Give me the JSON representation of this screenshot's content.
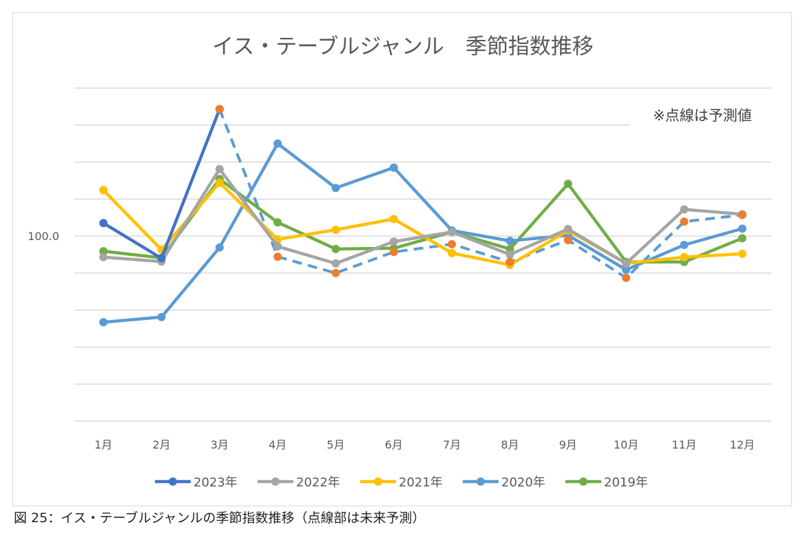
{
  "chart_data": {
    "type": "line",
    "title": "イス・テーブルジャンル　季節指数推移",
    "annotation": "※点線は予測値",
    "caption": "図 25：イス・テーブルジャンルの季節指数推移（点線部は未来予測）",
    "categories": [
      "1月",
      "2月",
      "3月",
      "4月",
      "5月",
      "6月",
      "7月",
      "8月",
      "9月",
      "10月",
      "11月",
      "12月"
    ],
    "ytick_labels": [
      {
        "value": 100,
        "label": "100.0"
      }
    ],
    "ylim": [
      50,
      140
    ],
    "grid": true,
    "legend_position": "bottom",
    "series": [
      {
        "name": "2023年",
        "color": "#4472c4",
        "values": [
          103.5,
          94.0,
          134.3,
          null,
          null,
          null,
          null,
          null,
          null,
          null,
          null,
          null
        ]
      },
      {
        "name": "2022年",
        "color": "#a5a5a5",
        "values": [
          94.3,
          93.1,
          118.1,
          97.2,
          92.6,
          98.5,
          101.1,
          95.0,
          101.9,
          92.6,
          107.2,
          105.9
        ]
      },
      {
        "name": "2021年",
        "color": "#ffc000",
        "values": [
          112.4,
          96.3,
          114.4,
          99.1,
          101.7,
          104.6,
          95.4,
          92.2,
          101.5,
          92.6,
          94.3,
          95.2
        ]
      },
      {
        "name": "2020年",
        "color": "#5b9bd5",
        "values": [
          76.7,
          78.1,
          96.9,
          125.0,
          113.0,
          118.5,
          101.5,
          98.7,
          100.2,
          90.9,
          97.6,
          102.0
        ]
      },
      {
        "name": "2019年",
        "color": "#70ad47",
        "values": [
          95.9,
          94.1,
          115.4,
          103.7,
          96.5,
          96.7,
          101.1,
          96.5,
          114.1,
          93.0,
          93.0,
          99.4
        ]
      }
    ],
    "forecast": {
      "line_color": "#5b9bd5",
      "marker_color": "#ed7d31",
      "dashed": true,
      "values": [
        null,
        null,
        134.3,
        94.4,
        90.0,
        95.7,
        97.8,
        93.0,
        98.9,
        88.7,
        103.9,
        105.7
      ]
    }
  }
}
